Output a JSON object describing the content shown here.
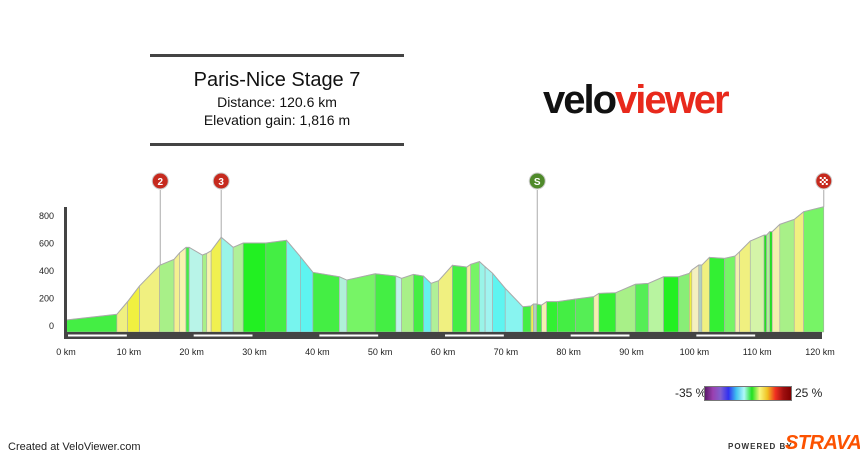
{
  "header": {
    "title": "Paris-Nice Stage 7",
    "distance": "Distance: 120.6 km",
    "elevation_gain": "Elevation gain: 1,816 m"
  },
  "logo": {
    "part1": "velo",
    "part2": "viewer",
    "colors": {
      "velo": "#111111",
      "viewer": "#e8291c"
    }
  },
  "footer": {
    "created": "Created at VeloViewer.com",
    "powered": "POWERED BY",
    "strava": "STRAVA"
  },
  "legend": {
    "min_label": "-35 %",
    "max_label": "25 %"
  },
  "chart_data": {
    "type": "area",
    "xlabel": "",
    "ylabel": "",
    "xlim": [
      0,
      120.6
    ],
    "ylim": [
      0,
      850
    ],
    "x_ticks": [
      "0 km",
      "10 km",
      "20 km",
      "30 km",
      "40 km",
      "50 km",
      "60 km",
      "70 km",
      "80 km",
      "90 km",
      "100 km",
      "110 km",
      "120 km"
    ],
    "y_ticks": [
      0,
      200,
      400,
      600,
      800
    ],
    "markers": [
      {
        "label": "2",
        "km": 15.0,
        "type": "climb",
        "color": "#c62a1e"
      },
      {
        "label": "3",
        "km": 24.7,
        "type": "climb",
        "color": "#c62a1e"
      },
      {
        "label": "S",
        "km": 75.0,
        "type": "sprint",
        "color": "#4f8a2a"
      },
      {
        "label": "",
        "km": 120.6,
        "type": "finish",
        "color": "#c62a1e"
      }
    ],
    "profile": [
      [
        0,
        36,
        "#44ee44"
      ],
      [
        8.1,
        78,
        "#f0f080"
      ],
      [
        9.8,
        170,
        "#f0f040"
      ],
      [
        11.7,
        284,
        "#f0f080"
      ],
      [
        14.9,
        434,
        "#a8f088"
      ],
      [
        17.2,
        478,
        "#f4f090"
      ],
      [
        18.1,
        526,
        "#f8f4b0"
      ],
      [
        19.1,
        565,
        "#44ee44"
      ],
      [
        19.6,
        565,
        "#b8f4e8"
      ],
      [
        21.7,
        509,
        "#a8f088"
      ],
      [
        22.4,
        521,
        "#f8f4b0"
      ],
      [
        23.1,
        540,
        "#f0f050"
      ],
      [
        24.7,
        638,
        "#99f4e8"
      ],
      [
        26.6,
        565,
        "#b0f098"
      ],
      [
        28.2,
        596,
        "#22f022"
      ],
      [
        31.8,
        596,
        "#44ee44"
      ],
      [
        35.1,
        616,
        "#77f4ee"
      ],
      [
        37.3,
        497,
        "#5ef4f0"
      ],
      [
        39.3,
        383,
        "#44ee44"
      ],
      [
        43.5,
        351,
        "#b0f0d8"
      ],
      [
        44.7,
        327,
        "#77f466"
      ],
      [
        49.2,
        373,
        "#44ee44"
      ],
      [
        52.5,
        356,
        "#c0f4e8"
      ],
      [
        53.4,
        339,
        "#a8f088"
      ],
      [
        55.3,
        368,
        "#44ee44"
      ],
      [
        56.9,
        356,
        "#66f0ee"
      ],
      [
        58.1,
        303,
        "#b0f098"
      ],
      [
        59.3,
        322,
        "#f0f080"
      ],
      [
        61.5,
        434,
        "#44ee44"
      ],
      [
        63.8,
        422,
        "#f4f0a0"
      ],
      [
        64.4,
        441,
        "#77f466"
      ],
      [
        65.8,
        461,
        "#99f4e8"
      ],
      [
        66.7,
        424,
        "#a0f4f0"
      ],
      [
        67.9,
        376,
        "#5ef4f0"
      ],
      [
        69.9,
        267,
        "#88f4f0"
      ],
      [
        72.7,
        133,
        "#44ee44"
      ],
      [
        74.0,
        138,
        "#f0f050"
      ],
      [
        74.4,
        153,
        "#b0d0c0"
      ],
      [
        74.9,
        153,
        "#44ee44"
      ],
      [
        75.7,
        145,
        "#f4f0b0"
      ],
      [
        76.5,
        170,
        "#33f033"
      ],
      [
        78.2,
        170,
        "#44ee44"
      ],
      [
        81.1,
        189,
        "#55ee55"
      ],
      [
        84.0,
        206,
        "#f4f0b0"
      ],
      [
        84.8,
        230,
        "#33f033"
      ],
      [
        87.5,
        235,
        "#a8f088"
      ],
      [
        90.6,
        296,
        "#55ee55"
      ],
      [
        92.7,
        303,
        "#b8f4a0"
      ],
      [
        95.1,
        351,
        "#22f022"
      ],
      [
        97.5,
        351,
        "#88ee77"
      ],
      [
        99.2,
        376,
        "#f0f040"
      ],
      [
        99.6,
        400,
        "#f4f0c0"
      ],
      [
        100.7,
        436,
        "#b0d0c0"
      ],
      [
        101.2,
        436,
        "#f0f080"
      ],
      [
        102.4,
        492,
        "#33f033"
      ],
      [
        104.8,
        485,
        "#77f466"
      ],
      [
        106.5,
        502,
        "#f4f0b0"
      ],
      [
        107.2,
        533,
        "#f0f080"
      ],
      [
        108.9,
        611,
        "#d4f4a8"
      ],
      [
        111.1,
        654,
        "#22e022"
      ],
      [
        111.5,
        654,
        "#b0f098"
      ],
      [
        112.0,
        679,
        "#22e022"
      ],
      [
        112.4,
        679,
        "#f4f0b0"
      ],
      [
        113.6,
        732,
        "#a8f088"
      ],
      [
        115.9,
        768,
        "#f0f080"
      ],
      [
        117.4,
        824,
        "#77f466"
      ],
      [
        120.6,
        860,
        null
      ]
    ]
  }
}
